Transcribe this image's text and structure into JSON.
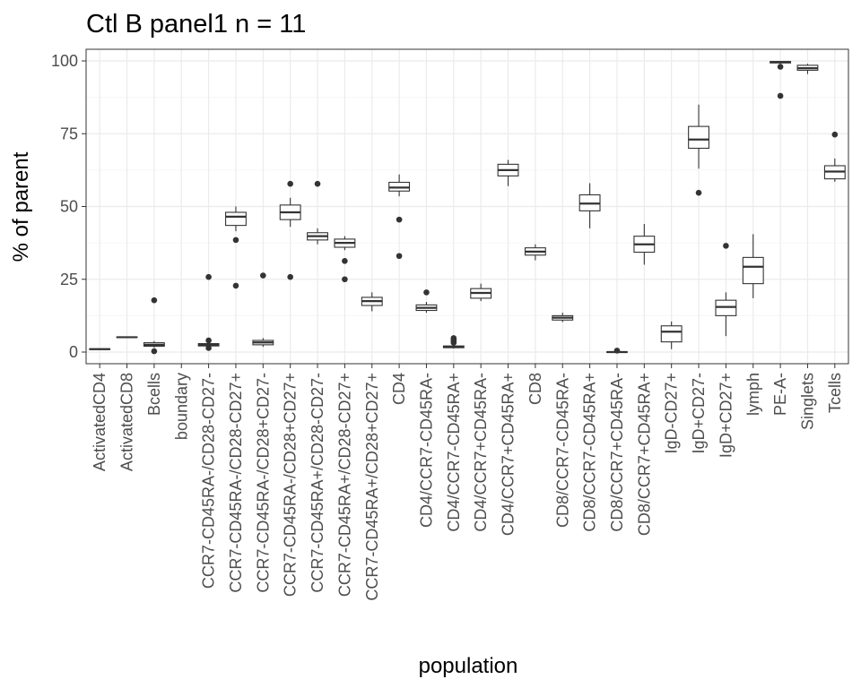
{
  "chart_data": {
    "type": "boxplot",
    "title": "Ctl B panel1 n = 11",
    "xlabel": "population",
    "ylabel": "% of parent",
    "ylim": [
      -4,
      104
    ],
    "yticks": [
      0,
      25,
      50,
      75,
      100
    ],
    "grid": true,
    "categories": [
      "ActivatedCD4",
      "ActivatedCD8",
      "Bcells",
      "boundary",
      "CCR7-CD45RA-/CD28-CD27-",
      "CCR7-CD45RA-/CD28-CD27+",
      "CCR7-CD45RA-/CD28+CD27-",
      "CCR7-CD45RA-/CD28+CD27+",
      "CCR7-CD45RA+/CD28-CD27-",
      "CCR7-CD45RA+/CD28-CD27+",
      "CCR7-CD45RA+/CD28+CD27+",
      "CD4",
      "CD4/CCR7-CD45RA-",
      "CD4/CCR7-CD45RA+",
      "CD4/CCR7+CD45RA-",
      "CD4/CCR7+CD45RA+",
      "CD8",
      "CD8/CCR7-CD45RA-",
      "CD8/CCR7-CD45RA+",
      "CD8/CCR7+CD45RA-",
      "CD8/CCR7+CD45RA+",
      "IgD-CD27+",
      "IgD+CD27-",
      "IgD+CD27+",
      "lymph",
      "PE-A-",
      "Singlets",
      "Tcells"
    ],
    "boxes": [
      {
        "min": 0.8,
        "q1": 0.9,
        "median": 1.0,
        "q3": 1.1,
        "max": 1.2,
        "outliers": []
      },
      {
        "min": 4.9,
        "q1": 5.0,
        "median": 5.1,
        "q3": 5.2,
        "max": 5.3,
        "outliers": []
      },
      {
        "min": 1.5,
        "q1": 2.0,
        "median": 2.5,
        "q3": 3.2,
        "max": 3.8,
        "outliers": [
          17.8,
          0.3
        ]
      },
      null,
      {
        "min": 1.8,
        "q1": 2.1,
        "median": 2.5,
        "q3": 2.9,
        "max": 3.2,
        "outliers": [
          25.8,
          4.0,
          1.4
        ]
      },
      {
        "min": 41.5,
        "q1": 43.5,
        "median": 46.5,
        "q3": 48.0,
        "max": 50.0,
        "outliers": [
          38.5,
          22.8
        ]
      },
      {
        "min": 1.8,
        "q1": 2.5,
        "median": 3.3,
        "q3": 4.0,
        "max": 4.8,
        "outliers": [
          26.3
        ]
      },
      {
        "min": 43.0,
        "q1": 45.5,
        "median": 48.0,
        "q3": 50.5,
        "max": 53.0,
        "outliers": [
          57.8,
          25.8
        ]
      },
      {
        "min": 37.0,
        "q1": 38.5,
        "median": 39.8,
        "q3": 41.0,
        "max": 42.5,
        "outliers": [
          57.8
        ]
      },
      {
        "min": 35.0,
        "q1": 36.0,
        "median": 37.5,
        "q3": 38.8,
        "max": 39.8,
        "outliers": [
          31.3,
          25.0
        ]
      },
      {
        "min": 14.0,
        "q1": 16.0,
        "median": 17.5,
        "q3": 18.8,
        "max": 20.5,
        "outliers": []
      },
      {
        "min": 53.5,
        "q1": 55.3,
        "median": 56.5,
        "q3": 58.3,
        "max": 61.0,
        "outliers": [
          45.5,
          33.0
        ]
      },
      {
        "min": 13.5,
        "q1": 14.3,
        "median": 15.2,
        "q3": 16.2,
        "max": 17.2,
        "outliers": [
          20.5
        ]
      },
      {
        "min": 1.2,
        "q1": 1.5,
        "median": 1.8,
        "q3": 2.1,
        "max": 2.5,
        "outliers": [
          3.2,
          3.9,
          4.3,
          4.8
        ]
      },
      {
        "min": 17.5,
        "q1": 18.5,
        "median": 20.3,
        "q3": 21.8,
        "max": 23.5,
        "outliers": []
      },
      {
        "min": 57.0,
        "q1": 60.5,
        "median": 62.5,
        "q3": 64.5,
        "max": 66.0,
        "outliers": []
      },
      {
        "min": 31.5,
        "q1": 33.3,
        "median": 34.5,
        "q3": 35.8,
        "max": 37.0,
        "outliers": []
      },
      {
        "min": 10.3,
        "q1": 11.0,
        "median": 11.8,
        "q3": 12.5,
        "max": 13.5,
        "outliers": []
      },
      {
        "min": 42.5,
        "q1": 48.5,
        "median": 51.0,
        "q3": 54.0,
        "max": 58.0,
        "outliers": []
      },
      {
        "min": -0.3,
        "q1": -0.1,
        "median": 0.0,
        "q3": 0.1,
        "max": 0.3,
        "outliers": [
          0.5
        ]
      },
      {
        "min": 30.0,
        "q1": 34.3,
        "median": 37.0,
        "q3": 39.8,
        "max": 44.0,
        "outliers": []
      },
      {
        "min": 1.0,
        "q1": 3.5,
        "median": 7.0,
        "q3": 9.0,
        "max": 10.5,
        "outliers": []
      },
      {
        "min": 63.0,
        "q1": 70.0,
        "median": 73.0,
        "q3": 77.5,
        "max": 85.0,
        "outliers": [
          54.7
        ]
      },
      {
        "min": 5.5,
        "q1": 12.5,
        "median": 15.5,
        "q3": 17.8,
        "max": 20.5,
        "outliers": [
          36.5
        ]
      },
      {
        "min": 18.5,
        "q1": 23.5,
        "median": 29.3,
        "q3": 32.5,
        "max": 40.5,
        "outliers": []
      },
      {
        "min": 99.0,
        "q1": 99.3,
        "median": 99.6,
        "q3": 99.8,
        "max": 100.0,
        "outliers": [
          98.0,
          88.0
        ]
      },
      {
        "min": 95.5,
        "q1": 96.8,
        "median": 97.5,
        "q3": 98.5,
        "max": 99.0,
        "outliers": []
      },
      {
        "min": 58.5,
        "q1": 59.5,
        "median": 62.0,
        "q3": 64.0,
        "max": 66.5,
        "outliers": [
          74.7
        ]
      }
    ]
  }
}
